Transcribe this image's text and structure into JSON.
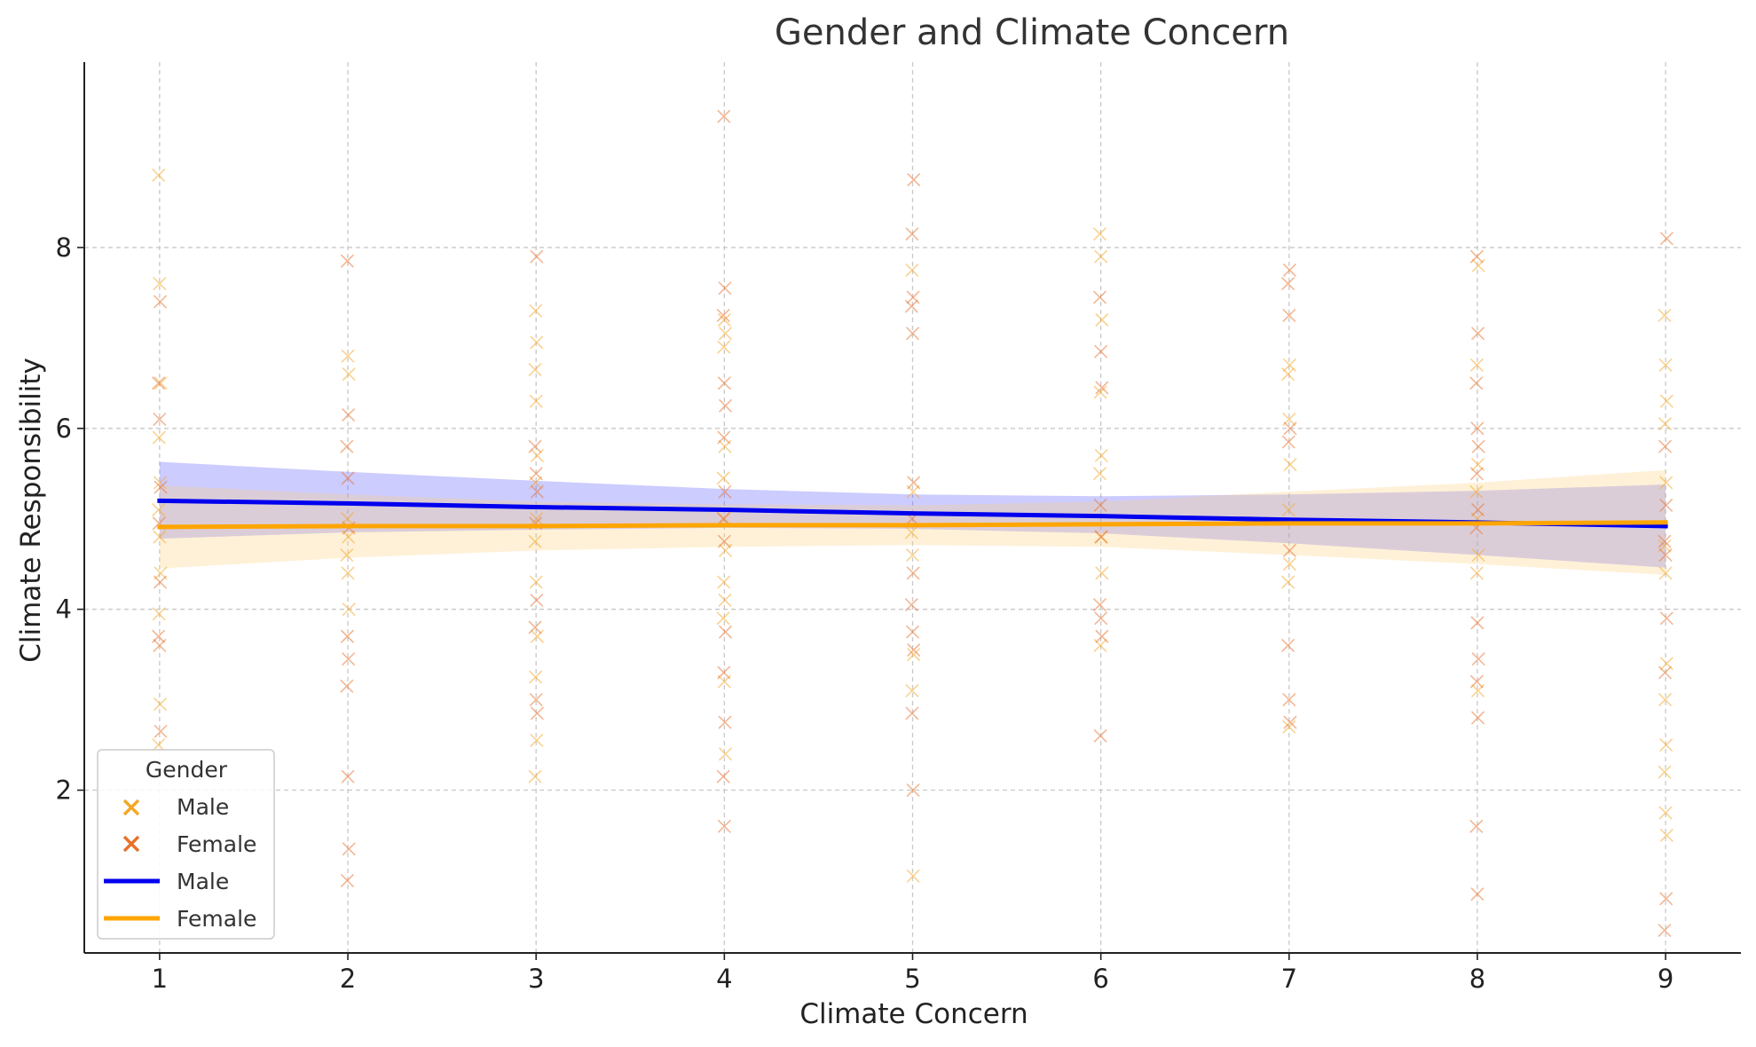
{
  "chart_data": {
    "type": "scatter",
    "title": "Gender and Climate Concern",
    "xlabel": "Climate Concern",
    "ylabel": "Climate Responsibility",
    "xlim": [
      0.6,
      9.4
    ],
    "ylim": [
      0.2,
      10.05
    ],
    "xticks": [
      1,
      2,
      3,
      4,
      5,
      6,
      7,
      8,
      9
    ],
    "yticks": [
      2,
      4,
      6,
      8
    ],
    "grid": true,
    "legend": {
      "title": "Gender",
      "position": "bottom-left",
      "entries": [
        {
          "label": "Male",
          "kind": "marker",
          "color": "#F5A623"
        },
        {
          "label": "Female",
          "kind": "marker",
          "color": "#E8702A"
        },
        {
          "label": "Male",
          "kind": "line",
          "color": "#0000EE"
        },
        {
          "label": "Female",
          "kind": "line",
          "color": "#FFA500"
        }
      ]
    },
    "scatter_series": [
      {
        "name": "Male",
        "color": "#F5A623",
        "points": [
          [
            1,
            8.8
          ],
          [
            1,
            7.6
          ],
          [
            1,
            6.5
          ],
          [
            1,
            5.9
          ],
          [
            1,
            5.4
          ],
          [
            1,
            5.1
          ],
          [
            1,
            4.8
          ],
          [
            1,
            4.4
          ],
          [
            1,
            3.95
          ],
          [
            1,
            2.95
          ],
          [
            1,
            2.5
          ],
          [
            2,
            6.8
          ],
          [
            2,
            6.6
          ],
          [
            2,
            5.0
          ],
          [
            2,
            4.8
          ],
          [
            2,
            4.6
          ],
          [
            2,
            4.4
          ],
          [
            2,
            4.0
          ],
          [
            3,
            7.3
          ],
          [
            3,
            6.95
          ],
          [
            3,
            6.65
          ],
          [
            3,
            6.3
          ],
          [
            3,
            5.7
          ],
          [
            3,
            5.4
          ],
          [
            3,
            5.0
          ],
          [
            3,
            4.75
          ],
          [
            3,
            4.3
          ],
          [
            3,
            3.7
          ],
          [
            3,
            3.25
          ],
          [
            3,
            2.55
          ],
          [
            3,
            2.15
          ],
          [
            4,
            7.2
          ],
          [
            4,
            7.05
          ],
          [
            4,
            6.9
          ],
          [
            4,
            5.8
          ],
          [
            4,
            5.45
          ],
          [
            4,
            5.0
          ],
          [
            4,
            4.65
          ],
          [
            4,
            4.3
          ],
          [
            4,
            4.1
          ],
          [
            4,
            3.9
          ],
          [
            4,
            3.2
          ],
          [
            4,
            2.4
          ],
          [
            5,
            7.75
          ],
          [
            5,
            5.3
          ],
          [
            5,
            4.85
          ],
          [
            5,
            4.6
          ],
          [
            5,
            3.5
          ],
          [
            5,
            3.1
          ],
          [
            5,
            1.05
          ],
          [
            6,
            8.15
          ],
          [
            6,
            7.9
          ],
          [
            6,
            7.2
          ],
          [
            6,
            6.4
          ],
          [
            6,
            5.7
          ],
          [
            6,
            5.5
          ],
          [
            6,
            4.8
          ],
          [
            6,
            4.4
          ],
          [
            6,
            3.6
          ],
          [
            7,
            6.7
          ],
          [
            7,
            6.6
          ],
          [
            7,
            6.1
          ],
          [
            7,
            5.6
          ],
          [
            7,
            5.1
          ],
          [
            7,
            4.5
          ],
          [
            7,
            4.3
          ],
          [
            7,
            2.7
          ],
          [
            8,
            7.8
          ],
          [
            8,
            6.7
          ],
          [
            8,
            5.6
          ],
          [
            8,
            5.3
          ],
          [
            8,
            5.0
          ],
          [
            8,
            4.6
          ],
          [
            8,
            4.4
          ],
          [
            8,
            3.1
          ],
          [
            9,
            7.25
          ],
          [
            9,
            6.7
          ],
          [
            9,
            6.3
          ],
          [
            9,
            6.05
          ],
          [
            9,
            5.4
          ],
          [
            9,
            4.7
          ],
          [
            9,
            4.4
          ],
          [
            9,
            3.4
          ],
          [
            9,
            3.0
          ],
          [
            9,
            2.5
          ],
          [
            9,
            2.2
          ],
          [
            9,
            1.75
          ],
          [
            9,
            1.5
          ]
        ]
      },
      {
        "name": "Female",
        "color": "#E8702A",
        "points": [
          [
            1,
            7.4
          ],
          [
            1,
            6.5
          ],
          [
            1,
            6.1
          ],
          [
            1,
            5.35
          ],
          [
            1,
            4.95
          ],
          [
            1,
            4.3
          ],
          [
            1,
            3.7
          ],
          [
            1,
            3.6
          ],
          [
            1,
            2.65
          ],
          [
            2,
            7.85
          ],
          [
            2,
            6.15
          ],
          [
            2,
            5.8
          ],
          [
            2,
            5.45
          ],
          [
            2,
            4.9
          ],
          [
            2,
            3.7
          ],
          [
            2,
            3.45
          ],
          [
            2,
            3.15
          ],
          [
            2,
            2.15
          ],
          [
            2,
            1.35
          ],
          [
            2,
            1.0
          ],
          [
            3,
            7.9
          ],
          [
            3,
            5.8
          ],
          [
            3,
            5.5
          ],
          [
            3,
            5.3
          ],
          [
            3,
            4.95
          ],
          [
            3,
            4.1
          ],
          [
            3,
            3.8
          ],
          [
            3,
            3.0
          ],
          [
            3,
            2.85
          ],
          [
            4,
            9.45
          ],
          [
            4,
            7.55
          ],
          [
            4,
            7.25
          ],
          [
            4,
            6.5
          ],
          [
            4,
            6.25
          ],
          [
            4,
            5.9
          ],
          [
            4,
            5.3
          ],
          [
            4,
            5.0
          ],
          [
            4,
            4.75
          ],
          [
            4,
            3.75
          ],
          [
            4,
            3.3
          ],
          [
            4,
            2.75
          ],
          [
            4,
            2.15
          ],
          [
            4,
            1.6
          ],
          [
            5,
            8.75
          ],
          [
            5,
            8.15
          ],
          [
            5,
            7.45
          ],
          [
            5,
            7.35
          ],
          [
            5,
            7.05
          ],
          [
            5,
            5.4
          ],
          [
            5,
            5.0
          ],
          [
            5,
            4.4
          ],
          [
            5,
            4.05
          ],
          [
            5,
            3.75
          ],
          [
            5,
            3.55
          ],
          [
            5,
            2.85
          ],
          [
            5,
            2.0
          ],
          [
            6,
            7.45
          ],
          [
            6,
            6.85
          ],
          [
            6,
            6.45
          ],
          [
            6,
            5.15
          ],
          [
            6,
            4.8
          ],
          [
            6,
            4.05
          ],
          [
            6,
            3.9
          ],
          [
            6,
            3.7
          ],
          [
            6,
            2.6
          ],
          [
            7,
            7.75
          ],
          [
            7,
            7.6
          ],
          [
            7,
            7.25
          ],
          [
            7,
            6.0
          ],
          [
            7,
            5.85
          ],
          [
            7,
            4.65
          ],
          [
            7,
            3.6
          ],
          [
            7,
            3.0
          ],
          [
            7,
            2.75
          ],
          [
            8,
            7.9
          ],
          [
            8,
            7.05
          ],
          [
            8,
            6.5
          ],
          [
            8,
            6.0
          ],
          [
            8,
            5.8
          ],
          [
            8,
            5.5
          ],
          [
            8,
            5.1
          ],
          [
            8,
            4.9
          ],
          [
            8,
            3.85
          ],
          [
            8,
            3.45
          ],
          [
            8,
            3.2
          ],
          [
            8,
            2.8
          ],
          [
            8,
            1.6
          ],
          [
            8,
            0.85
          ],
          [
            9,
            8.1
          ],
          [
            9,
            5.8
          ],
          [
            9,
            5.15
          ],
          [
            9,
            4.75
          ],
          [
            9,
            4.6
          ],
          [
            9,
            3.9
          ],
          [
            9,
            3.3
          ],
          [
            9,
            0.8
          ],
          [
            9,
            0.45
          ]
        ]
      }
    ],
    "regression_series": [
      {
        "name": "Male",
        "color": "#0000EE",
        "band_color": "#5555FF",
        "x": [
          1,
          2,
          3,
          4,
          5,
          6,
          7,
          8,
          9
        ],
        "y": [
          5.2,
          5.17,
          5.13,
          5.1,
          5.06,
          5.03,
          4.99,
          4.96,
          4.92
        ],
        "ci_low": [
          4.78,
          4.85,
          4.88,
          4.9,
          4.89,
          4.84,
          4.73,
          4.6,
          4.46
        ],
        "ci_high": [
          5.63,
          5.52,
          5.42,
          5.33,
          5.27,
          5.25,
          5.27,
          5.31,
          5.38
        ]
      },
      {
        "name": "Female",
        "color": "#FFA500",
        "band_color": "#FFD27F",
        "x": [
          1,
          2,
          3,
          4,
          5,
          6,
          7,
          8,
          9
        ],
        "y": [
          4.91,
          4.92,
          4.92,
          4.93,
          4.93,
          4.94,
          4.95,
          4.95,
          4.96
        ],
        "ci_low": [
          4.45,
          4.57,
          4.65,
          4.69,
          4.71,
          4.69,
          4.6,
          4.5,
          4.38
        ],
        "ci_high": [
          5.37,
          5.27,
          5.19,
          5.16,
          5.15,
          5.19,
          5.3,
          5.4,
          5.54
        ]
      }
    ]
  }
}
